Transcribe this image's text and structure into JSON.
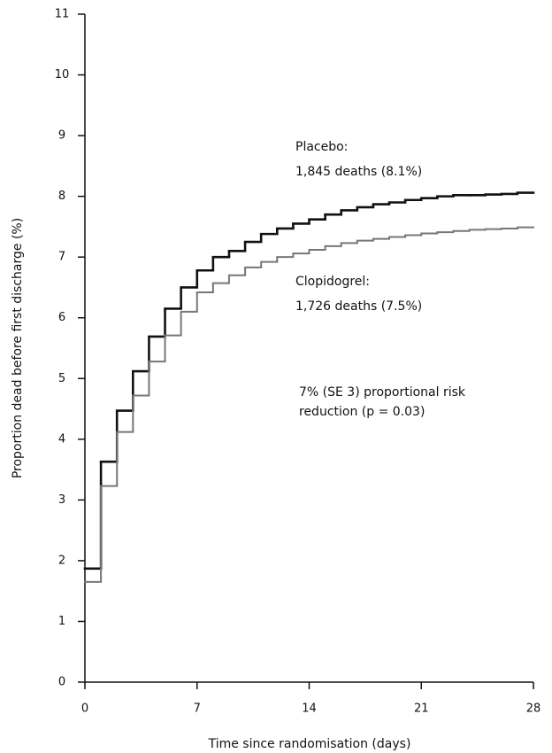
{
  "chart_data": {
    "type": "step",
    "xlabel": "Time since randomisation (days)",
    "ylabel": "Proportion dead before first discharge (%)",
    "x": [
      0,
      1,
      2,
      3,
      4,
      5,
      6,
      7,
      8,
      9,
      10,
      11,
      12,
      13,
      14,
      15,
      16,
      17,
      18,
      19,
      20,
      21,
      22,
      23,
      24,
      25,
      26,
      27
    ],
    "series": [
      {
        "name": "Placebo",
        "color": "#111111",
        "values": [
          1.87,
          3.63,
          4.47,
          5.12,
          5.69,
          6.15,
          6.5,
          6.78,
          7.0,
          7.1,
          7.25,
          7.38,
          7.47,
          7.55,
          7.62,
          7.7,
          7.77,
          7.82,
          7.87,
          7.9,
          7.94,
          7.97,
          8.0,
          8.02,
          8.02,
          8.03,
          8.04,
          8.06
        ]
      },
      {
        "name": "Clopidogrel",
        "color": "#777777",
        "values": [
          1.65,
          3.23,
          4.12,
          4.72,
          5.28,
          5.71,
          6.1,
          6.42,
          6.57,
          6.7,
          6.83,
          6.92,
          7.0,
          7.06,
          7.12,
          7.18,
          7.23,
          7.27,
          7.3,
          7.33,
          7.36,
          7.39,
          7.41,
          7.43,
          7.45,
          7.46,
          7.47,
          7.49
        ]
      }
    ],
    "annotations": [
      "Placebo:",
      "1,845 deaths (8.1%)",
      "Clopidogrel:",
      "1,726 deaths (7.5%)",
      "7% (SE 3) proportional risk",
      "reduction (p = 0.03)"
    ],
    "xlim": [
      0,
      28
    ],
    "xticks": [
      0,
      7,
      14,
      21,
      28
    ],
    "ylim": [
      0,
      11
    ],
    "yticks": [
      0,
      1,
      2,
      3,
      4,
      5,
      6,
      7,
      8,
      9,
      10,
      11
    ]
  }
}
